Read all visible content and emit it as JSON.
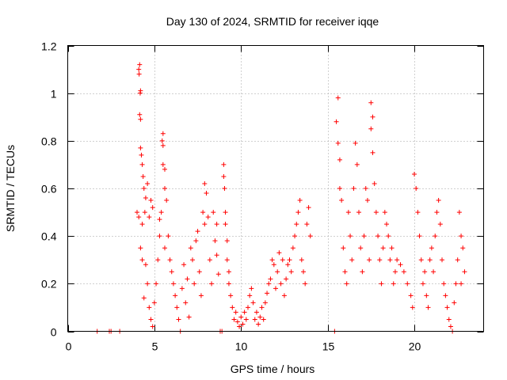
{
  "chart_data": {
    "type": "scatter",
    "title": "Day 130 of 2024, SRMTID for receiver iqqe",
    "xlabel": "GPS time / hours",
    "ylabel": "SRMTID / TECUs",
    "xlim": [
      0,
      24
    ],
    "ylim": [
      0,
      1.2
    ],
    "x_ticks": [
      0,
      5,
      10,
      15,
      20
    ],
    "x_tick_labels": [
      "0",
      "5",
      "10",
      "15",
      "20"
    ],
    "y_ticks": [
      0,
      0.2,
      0.4,
      0.6,
      0.8,
      1,
      1.2
    ],
    "y_tick_labels": [
      "0",
      "0.2",
      "0.4",
      "0.6",
      "0.8",
      "1",
      "1.2"
    ],
    "grid": true,
    "marker": "+",
    "series": [
      {
        "name": "SRMTID",
        "color": "#ff0000",
        "points": [
          [
            1.7,
            0.0
          ],
          [
            2.4,
            0.0
          ],
          [
            2.5,
            0.0
          ],
          [
            3.0,
            0.0
          ],
          [
            4.1,
            1.1
          ],
          [
            4.15,
            1.12
          ],
          [
            4.12,
            1.08
          ],
          [
            4.2,
            1.01
          ],
          [
            4.18,
            1.0
          ],
          [
            4.15,
            0.91
          ],
          [
            4.2,
            0.89
          ],
          [
            4.2,
            0.77
          ],
          [
            4.25,
            0.74
          ],
          [
            4.3,
            0.7
          ],
          [
            4.35,
            0.65
          ],
          [
            4.4,
            0.6
          ],
          [
            4.5,
            0.56
          ],
          [
            4.45,
            0.5
          ],
          [
            4.6,
            0.62
          ],
          [
            4.7,
            0.48
          ],
          [
            4.8,
            0.55
          ],
          [
            4.9,
            0.52
          ],
          [
            4.0,
            0.5
          ],
          [
            4.1,
            0.48
          ],
          [
            4.3,
            0.45
          ],
          [
            4.2,
            0.35
          ],
          [
            4.3,
            0.3
          ],
          [
            4.5,
            0.28
          ],
          [
            4.6,
            0.2
          ],
          [
            4.4,
            0.14
          ],
          [
            4.7,
            0.1
          ],
          [
            4.8,
            0.05
          ],
          [
            4.9,
            0.02
          ],
          [
            5.0,
            0.12
          ],
          [
            5.1,
            0.2
          ],
          [
            5.2,
            0.3
          ],
          [
            5.3,
            0.4
          ],
          [
            5.4,
            0.5
          ],
          [
            5.3,
            0.47
          ],
          [
            5.5,
            0.83
          ],
          [
            5.45,
            0.8
          ],
          [
            5.5,
            0.78
          ],
          [
            5.5,
            0.7
          ],
          [
            5.6,
            0.68
          ],
          [
            5.6,
            0.6
          ],
          [
            5.7,
            0.55
          ],
          [
            5.6,
            0.35
          ],
          [
            5.8,
            0.4
          ],
          [
            5.9,
            0.3
          ],
          [
            6.0,
            0.25
          ],
          [
            6.1,
            0.2
          ],
          [
            6.2,
            0.15
          ],
          [
            6.3,
            0.1
          ],
          [
            6.4,
            0.05
          ],
          [
            6.5,
            0.0
          ],
          [
            6.6,
            0.18
          ],
          [
            6.7,
            0.28
          ],
          [
            6.8,
            0.12
          ],
          [
            6.9,
            0.22
          ],
          [
            7.0,
            0.06
          ],
          [
            7.1,
            0.35
          ],
          [
            7.2,
            0.3
          ],
          [
            7.3,
            0.2
          ],
          [
            7.4,
            0.38
          ],
          [
            7.5,
            0.42
          ],
          [
            7.6,
            0.25
          ],
          [
            7.7,
            0.15
          ],
          [
            7.8,
            0.5
          ],
          [
            7.9,
            0.62
          ],
          [
            8.0,
            0.58
          ],
          [
            7.9,
            0.45
          ],
          [
            8.1,
            0.48
          ],
          [
            8.2,
            0.3
          ],
          [
            8.3,
            0.2
          ],
          [
            8.4,
            0.5
          ],
          [
            8.5,
            0.38
          ],
          [
            8.6,
            0.32
          ],
          [
            8.7,
            0.24
          ],
          [
            8.6,
            0.45
          ],
          [
            8.8,
            0.0
          ],
          [
            8.9,
            0.0
          ],
          [
            9.0,
            0.7
          ],
          [
            9.0,
            0.65
          ],
          [
            9.05,
            0.6
          ],
          [
            9.1,
            0.5
          ],
          [
            9.1,
            0.45
          ],
          [
            9.2,
            0.38
          ],
          [
            9.2,
            0.3
          ],
          [
            9.3,
            0.25
          ],
          [
            9.3,
            0.2
          ],
          [
            9.4,
            0.15
          ],
          [
            9.5,
            0.1
          ],
          [
            9.6,
            0.05
          ],
          [
            9.7,
            0.08
          ],
          [
            9.8,
            0.04
          ],
          [
            9.9,
            0.02
          ],
          [
            10.0,
            0.06
          ],
          [
            10.1,
            0.03
          ],
          [
            10.2,
            0.08
          ],
          [
            10.3,
            0.05
          ],
          [
            10.4,
            0.1
          ],
          [
            10.5,
            0.15
          ],
          [
            10.6,
            0.18
          ],
          [
            10.7,
            0.12
          ],
          [
            10.8,
            0.05
          ],
          [
            10.9,
            0.08
          ],
          [
            11.0,
            0.03
          ],
          [
            11.1,
            0.06
          ],
          [
            11.2,
            0.1
          ],
          [
            11.3,
            0.05
          ],
          [
            11.4,
            0.12
          ],
          [
            11.5,
            0.16
          ],
          [
            11.6,
            0.2
          ],
          [
            11.7,
            0.22
          ],
          [
            11.8,
            0.3
          ],
          [
            11.9,
            0.28
          ],
          [
            12.0,
            0.18
          ],
          [
            12.1,
            0.25
          ],
          [
            12.2,
            0.33
          ],
          [
            12.3,
            0.2
          ],
          [
            12.4,
            0.3
          ],
          [
            12.5,
            0.15
          ],
          [
            12.6,
            0.22
          ],
          [
            12.7,
            0.28
          ],
          [
            12.8,
            0.3
          ],
          [
            12.9,
            0.25
          ],
          [
            13.0,
            0.35
          ],
          [
            13.1,
            0.4
          ],
          [
            13.2,
            0.45
          ],
          [
            13.3,
            0.5
          ],
          [
            13.4,
            0.55
          ],
          [
            13.5,
            0.3
          ],
          [
            13.6,
            0.25
          ],
          [
            13.7,
            0.2
          ],
          [
            13.8,
            0.45
          ],
          [
            13.9,
            0.52
          ],
          [
            14.0,
            0.4
          ],
          [
            15.4,
            0.0
          ],
          [
            15.6,
            0.98
          ],
          [
            15.5,
            0.88
          ],
          [
            15.6,
            0.79
          ],
          [
            15.7,
            0.72
          ],
          [
            15.7,
            0.6
          ],
          [
            15.8,
            0.55
          ],
          [
            15.9,
            0.35
          ],
          [
            16.0,
            0.25
          ],
          [
            16.1,
            0.2
          ],
          [
            16.2,
            0.5
          ],
          [
            16.3,
            0.4
          ],
          [
            16.4,
            0.3
          ],
          [
            16.5,
            0.6
          ],
          [
            16.6,
            0.79
          ],
          [
            16.7,
            0.7
          ],
          [
            16.8,
            0.5
          ],
          [
            16.9,
            0.35
          ],
          [
            17.0,
            0.25
          ],
          [
            17.1,
            0.4
          ],
          [
            17.2,
            0.6
          ],
          [
            17.3,
            0.55
          ],
          [
            17.4,
            0.3
          ],
          [
            17.5,
            0.96
          ],
          [
            17.6,
            0.9
          ],
          [
            17.5,
            0.85
          ],
          [
            17.6,
            0.75
          ],
          [
            17.7,
            0.62
          ],
          [
            17.8,
            0.5
          ],
          [
            17.9,
            0.4
          ],
          [
            18.0,
            0.3
          ],
          [
            18.1,
            0.2
          ],
          [
            18.2,
            0.35
          ],
          [
            18.3,
            0.5
          ],
          [
            18.4,
            0.45
          ],
          [
            18.5,
            0.4
          ],
          [
            18.6,
            0.3
          ],
          [
            18.7,
            0.35
          ],
          [
            18.8,
            0.2
          ],
          [
            18.9,
            0.25
          ],
          [
            19.0,
            0.3
          ],
          [
            19.2,
            0.28
          ],
          [
            19.4,
            0.25
          ],
          [
            19.6,
            0.2
          ],
          [
            19.8,
            0.15
          ],
          [
            19.9,
            0.1
          ],
          [
            20.0,
            0.66
          ],
          [
            20.1,
            0.6
          ],
          [
            20.2,
            0.5
          ],
          [
            20.3,
            0.4
          ],
          [
            20.4,
            0.3
          ],
          [
            20.5,
            0.2
          ],
          [
            20.6,
            0.25
          ],
          [
            20.7,
            0.15
          ],
          [
            20.8,
            0.1
          ],
          [
            20.9,
            0.3
          ],
          [
            21.0,
            0.35
          ],
          [
            21.1,
            0.25
          ],
          [
            21.2,
            0.4
          ],
          [
            21.3,
            0.5
          ],
          [
            21.4,
            0.55
          ],
          [
            21.5,
            0.45
          ],
          [
            21.6,
            0.3
          ],
          [
            21.7,
            0.2
          ],
          [
            21.8,
            0.15
          ],
          [
            21.9,
            0.1
          ],
          [
            22.0,
            0.05
          ],
          [
            22.1,
            0.02
          ],
          [
            22.2,
            0.0
          ],
          [
            22.3,
            0.12
          ],
          [
            22.4,
            0.2
          ],
          [
            22.5,
            0.3
          ],
          [
            22.6,
            0.5
          ],
          [
            22.7,
            0.4
          ],
          [
            22.8,
            0.35
          ],
          [
            22.9,
            0.25
          ],
          [
            22.7,
            0.2
          ]
        ]
      }
    ]
  }
}
